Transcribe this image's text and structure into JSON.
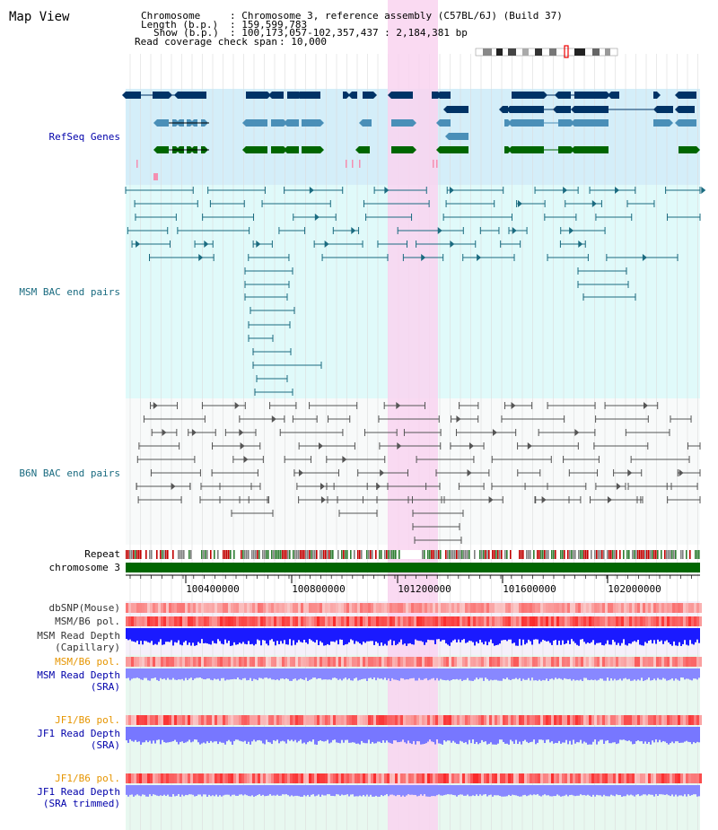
{
  "app_title": "Map View",
  "header": {
    "chromosome_label": "Chromosome",
    "chromosome_value": ": Chromosome 3, reference assembly (C57BL/6J) (Build 37)",
    "length_label": "Length (b.p.)",
    "length_value": ": 159,599,783",
    "show_label": "Show (b.p.)",
    "show_value": ": 100,173,057-102,357,437 : 2,184,381 bp",
    "coverage_label": "Read coverage check span",
    "coverage_value": ": 10,000"
  },
  "tracks": {
    "refseq": "RefSeq Genes",
    "msm_bac": "MSM BAC end pairs",
    "b6n_bac": "B6N BAC end pairs",
    "repeat": "Repeat",
    "chromosome": "chromosome 3",
    "dbsnp": "dbSNP(Mouse)",
    "msm_b6_pol": "MSM/B6 pol.",
    "msm_depth_cap_1": "MSM Read Depth",
    "msm_depth_cap_2": "(Capillary)",
    "msm_b6_pol_2": "MSM/B6 pol.",
    "msm_depth_sra_1": "MSM Read Depth",
    "msm_depth_sra_2": "(SRA)",
    "jf1_b6_pol": "JF1/B6 pol.",
    "jf1_depth_sra_1": "JF1 Read Depth",
    "jf1_depth_sra_2": "(SRA)",
    "jf1_b6_pol_2": "JF1/B6 pol.",
    "jf1_depth_trim_1": "JF1 Read Depth",
    "jf1_depth_trim_2": "(SRA trimmed)"
  },
  "ruler": {
    "ticks": [
      "100400000",
      "100800000",
      "101200000",
      "101600000",
      "102000000"
    ]
  },
  "colors": {
    "label_blue": "#0000aa",
    "label_orange": "#e69500",
    "refseq_bg": "#d4eef9",
    "msm_bg": "#e0fafa",
    "gene_navy": "#003366",
    "gene_steel": "#4a8fb8",
    "gene_green": "#006600",
    "highlight": "#f9d4f0",
    "bac_teal": "#1a6b80",
    "bac_grey": "#555555"
  }
}
